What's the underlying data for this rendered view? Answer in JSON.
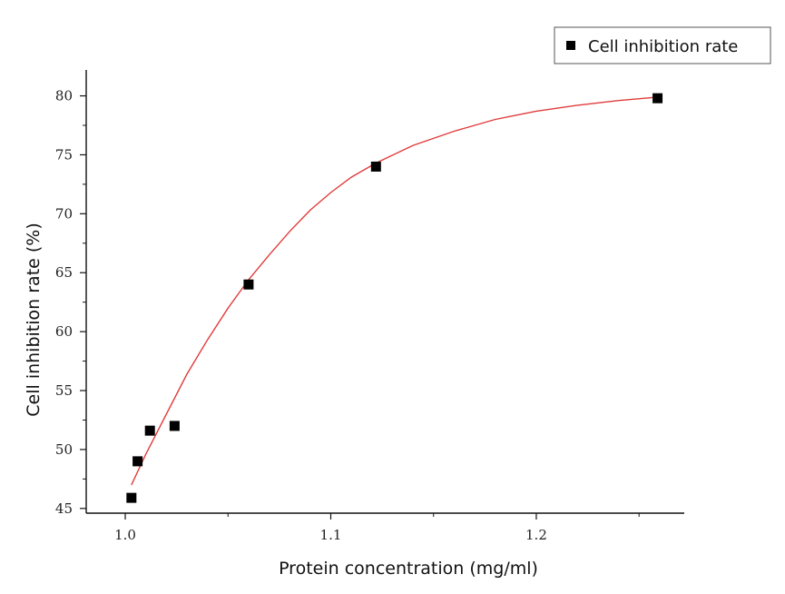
{
  "chart_data": {
    "type": "scatter",
    "title": "",
    "xlabel": "Protein concentration (mg/ml)",
    "ylabel": "Cell inhibition rate (%)",
    "xlim": [
      0.981,
      1.272
    ],
    "ylim": [
      44.6,
      82.2
    ],
    "x_ticks": [
      1.0,
      1.1,
      1.2
    ],
    "x_tick_labels": [
      "1.0",
      "1.1",
      "1.2"
    ],
    "y_ticks": [
      45,
      50,
      55,
      60,
      65,
      70,
      75,
      80
    ],
    "y_tick_labels": [
      "45",
      "50",
      "55",
      "60",
      "65",
      "70",
      "75",
      "80"
    ],
    "grid": false,
    "legend": {
      "position": "top-right",
      "entries": [
        "Cell inhibition rate"
      ]
    },
    "series": [
      {
        "name": "Cell inhibition rate",
        "kind": "scatter",
        "marker": "square",
        "color": "#000000",
        "points": [
          {
            "x": 1.003,
            "y": 45.9
          },
          {
            "x": 1.006,
            "y": 49.0
          },
          {
            "x": 1.012,
            "y": 51.6
          },
          {
            "x": 1.024,
            "y": 52.0
          },
          {
            "x": 1.06,
            "y": 64.0
          },
          {
            "x": 1.122,
            "y": 74.0
          },
          {
            "x": 1.259,
            "y": 79.8
          }
        ]
      },
      {
        "kind": "fit-line",
        "color": "#e03c3c",
        "points": [
          {
            "x": 1.003,
            "y": 47.0
          },
          {
            "x": 1.01,
            "y": 49.6
          },
          {
            "x": 1.02,
            "y": 53.0
          },
          {
            "x": 1.03,
            "y": 56.4
          },
          {
            "x": 1.04,
            "y": 59.3
          },
          {
            "x": 1.05,
            "y": 62.0
          },
          {
            "x": 1.06,
            "y": 64.4
          },
          {
            "x": 1.07,
            "y": 66.5
          },
          {
            "x": 1.08,
            "y": 68.5
          },
          {
            "x": 1.09,
            "y": 70.3
          },
          {
            "x": 1.1,
            "y": 71.8
          },
          {
            "x": 1.11,
            "y": 73.1
          },
          {
            "x": 1.122,
            "y": 74.3
          },
          {
            "x": 1.14,
            "y": 75.8
          },
          {
            "x": 1.16,
            "y": 77.0
          },
          {
            "x": 1.18,
            "y": 78.0
          },
          {
            "x": 1.2,
            "y": 78.7
          },
          {
            "x": 1.22,
            "y": 79.2
          },
          {
            "x": 1.24,
            "y": 79.6
          },
          {
            "x": 1.259,
            "y": 79.9
          }
        ]
      }
    ]
  }
}
